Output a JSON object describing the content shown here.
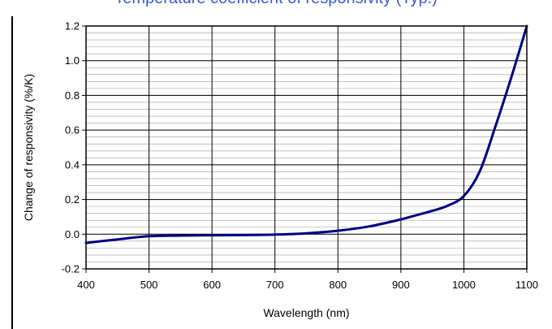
{
  "title": "Temperature coefficient of responsivity (Typ.)",
  "chart_data": {
    "type": "line",
    "title": "Temperature coefficient of responsivity (Typ.)",
    "xlabel": "Wavelength (nm)",
    "ylabel": "Change of responsivity  (%/K)",
    "xlim": [
      400,
      1100
    ],
    "ylim": [
      -0.2,
      1.2
    ],
    "x_ticks": [
      "400",
      "500",
      "600",
      "700",
      "800",
      "900",
      "1000",
      "1100"
    ],
    "y_ticks": [
      "-0.2",
      "0.0",
      "0.2",
      "0.4",
      "0.6",
      "0.8",
      "1.0",
      "1.2"
    ],
    "grid": true,
    "series": [
      {
        "color": "#000080",
        "x": [
          400,
          450,
          500,
          550,
          600,
          650,
          700,
          750,
          800,
          850,
          900,
          925,
          950,
          975,
          1000,
          1025,
          1050,
          1075,
          1100
        ],
        "y": [
          -0.05,
          -0.03,
          -0.012,
          -0.008,
          -0.006,
          -0.005,
          -0.002,
          0.005,
          0.02,
          0.045,
          0.085,
          0.11,
          0.135,
          0.165,
          0.22,
          0.36,
          0.62,
          0.9,
          1.2
        ]
      }
    ]
  }
}
